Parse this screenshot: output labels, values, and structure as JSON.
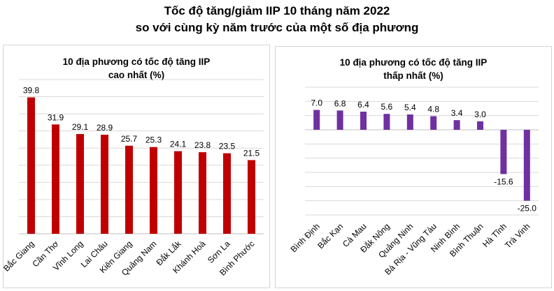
{
  "title_line1": "Tốc độ tăng/giảm IIP 10 tháng năm 2022",
  "title_line2": "so với cùng kỳ năm trước của một số địa phương",
  "chart_data": [
    {
      "type": "bar",
      "title_line1": "10 địa phương có tốc độ tăng IIP",
      "title_line2": "cao nhất (%)",
      "categories": [
        "Bắc Giang",
        "Cần Thơ",
        "Vĩnh Long",
        "Lai Châu",
        "Kiên Giang",
        "Quảng Nam",
        "Đắk Lắk",
        "Khánh Hoà",
        "Sơn La",
        "Bình Phước"
      ],
      "values": [
        39.8,
        31.9,
        29.1,
        28.9,
        25.7,
        25.3,
        24.1,
        23.8,
        23.5,
        21.5
      ],
      "value_labels": [
        "39.8",
        "31.9",
        "29.1",
        "28.9",
        "25.7",
        "25.3",
        "24.1",
        "23.8",
        "23.5",
        "21.5"
      ],
      "ylim": [
        0,
        45
      ],
      "grid": true,
      "color": "#c00000"
    },
    {
      "type": "bar",
      "title_line1": "10 địa phương có tốc độ tăng IIP",
      "title_line2": "thấp nhất (%)",
      "categories": [
        "Bình Định",
        "Bắc Kạn",
        "Cà Mau",
        "Đắk Nông",
        "Quảng Ninh",
        "Bà Rịa - Vũng Tàu",
        "Ninh Bình",
        "Bình Thuận",
        "Hà Tĩnh",
        "Trà Vinh"
      ],
      "values": [
        7.0,
        6.8,
        6.4,
        5.6,
        5.4,
        4.8,
        3.4,
        3.0,
        -15.6,
        -25.0
      ],
      "value_labels": [
        "7.0",
        "6.8",
        "6.4",
        "5.6",
        "5.4",
        "4.8",
        "3.4",
        "3.0",
        "-15.6",
        "-25.0"
      ],
      "ylim": [
        -30,
        15
      ],
      "grid": true,
      "color": "#7030a0"
    }
  ]
}
